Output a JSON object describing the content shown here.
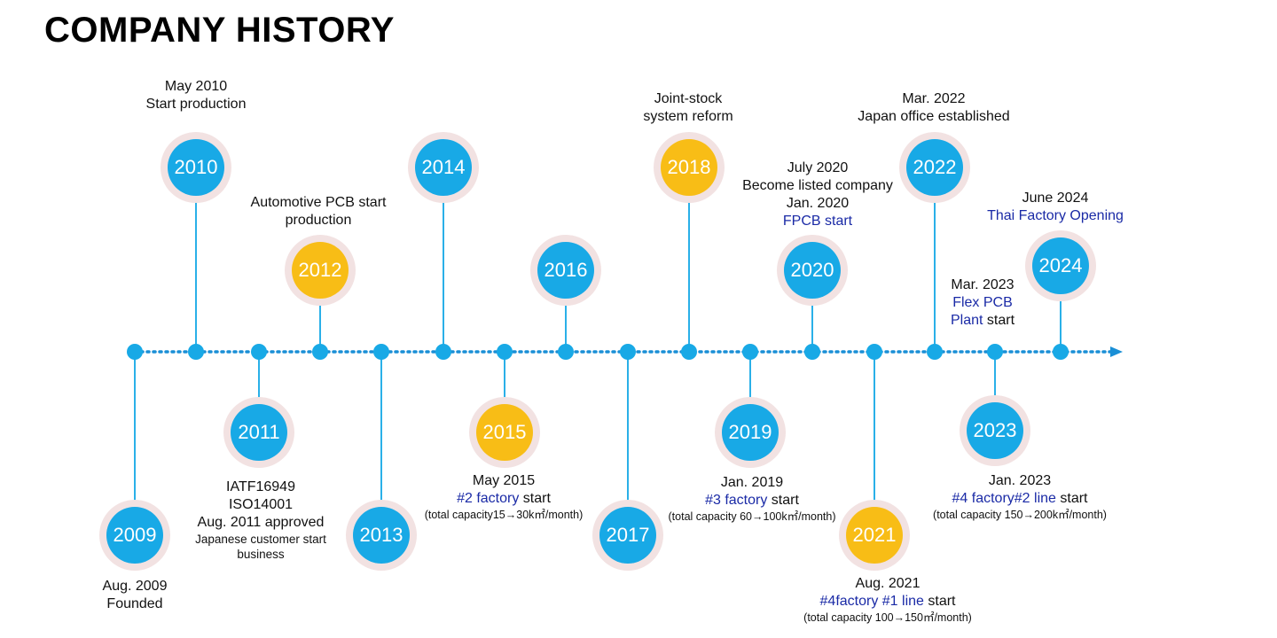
{
  "title": "COMPANY HISTORY",
  "colors": {
    "blue": "#18a9e6",
    "gold": "#f8bd16",
    "ring": "#f2e2e2",
    "line": "#1a8fd6",
    "highlight": "#1a2aa6"
  },
  "years": {
    "y2009": "2009",
    "y2010": "2010",
    "y2011": "2011",
    "y2012": "2012",
    "y2013": "2013",
    "y2014": "2014",
    "y2015": "2015",
    "y2016": "2016",
    "y2017": "2017",
    "y2018": "2018",
    "y2019": "2019",
    "y2020": "2020",
    "y2021": "2021",
    "y2022": "2022",
    "y2023": "2023",
    "y2024": "2024"
  },
  "events": {
    "e2010": {
      "line1": "May 2010",
      "line2": "Start production"
    },
    "e2012": {
      "line1": "Automotive PCB start",
      "line2": "production"
    },
    "e2018": {
      "line1": "Joint-stock",
      "line2": "system reform"
    },
    "e2020": {
      "line1": "July 2020",
      "line2": "Become listed company",
      "line3": "Jan. 2020",
      "line4": "FPCB start"
    },
    "e2022": {
      "line1": "Mar. 2022",
      "line2": "Japan office established"
    },
    "e2024": {
      "line1": "June 2024",
      "line2": "Thai Factory Opening"
    },
    "e2023a": {
      "line1": "Mar. 2023",
      "line2": "Flex PCB",
      "line3a": "Plant",
      "line3b": " start"
    },
    "e2009": {
      "line1": "Aug. 2009",
      "line2": "Founded"
    },
    "e2011": {
      "line1": "IATF16949",
      "line2": "ISO14001",
      "line3": "Aug. 2011 approved",
      "line4": "Japanese customer start",
      "line5": "business"
    },
    "e2015": {
      "line1": "May 2015",
      "line2a": "#2 factory",
      "line2b": " start",
      "line3": "(total capacity15→30k㎡/month)"
    },
    "e2019": {
      "line1": "Jan. 2019",
      "line2a": "#3 factory",
      "line2b": " start",
      "line3": "(total capacity 60→100k㎡/month)"
    },
    "e2021": {
      "line1": "Aug. 2021",
      "line2a": "#4factory #1 line",
      "line2b": " start",
      "line3": "(total capacity 100→150㎡/month)"
    },
    "e2023b": {
      "line1": "Jan. 2023",
      "line2a": "#4 factory#2 line",
      "line2b": " start",
      "line3": "(total capacity 150→200k㎡/month)"
    }
  }
}
